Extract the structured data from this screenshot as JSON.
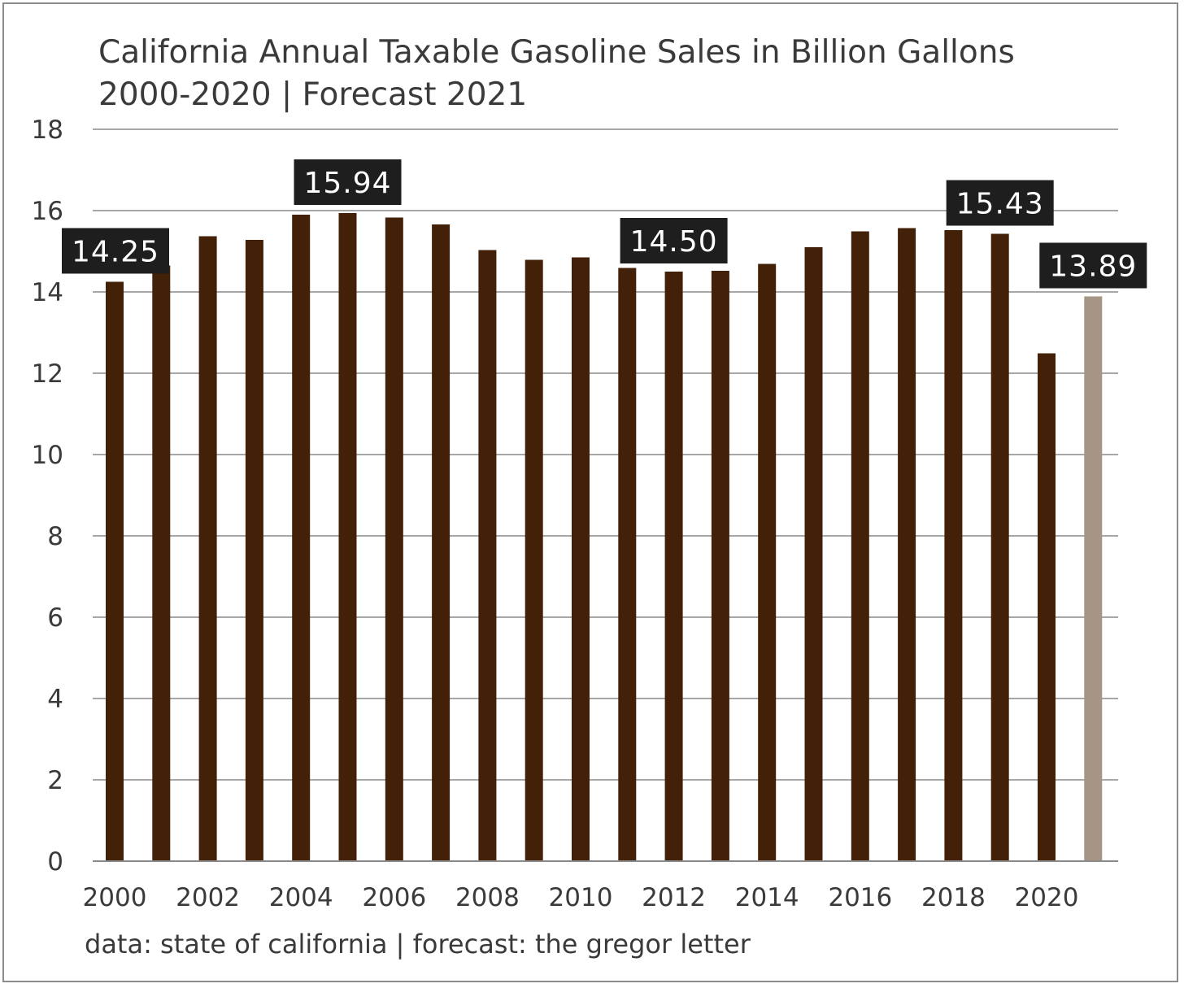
{
  "chart_data": {
    "type": "bar",
    "title": "California Annual Taxable Gasoline Sales in Billion Gallons",
    "subtitle": "2000-2020 | Forecast 2021",
    "source": "data: state of california | forecast: the gregor letter",
    "xlabel": "",
    "ylabel": "",
    "ylim": [
      0,
      18
    ],
    "yticks": [
      "0",
      "2",
      "4",
      "6",
      "8",
      "10",
      "12",
      "14",
      "16",
      "18"
    ],
    "xticks": [
      "2000",
      "2002",
      "2004",
      "2006",
      "2008",
      "2010",
      "2012",
      "2014",
      "2016",
      "2018",
      "2020"
    ],
    "grid": true,
    "legend": "none",
    "categories": [
      "2000",
      "2001",
      "2002",
      "2003",
      "2004",
      "2005",
      "2006",
      "2007",
      "2008",
      "2009",
      "2010",
      "2011",
      "2012",
      "2013",
      "2014",
      "2015",
      "2016",
      "2017",
      "2018",
      "2019",
      "2020",
      "2021"
    ],
    "values": [
      14.25,
      14.65,
      15.37,
      15.28,
      15.9,
      15.94,
      15.83,
      15.66,
      15.03,
      14.79,
      14.85,
      14.59,
      14.5,
      14.52,
      14.69,
      15.1,
      15.49,
      15.57,
      15.52,
      15.43,
      12.49,
      13.89
    ],
    "forecast_categories": [
      "2021"
    ],
    "data_labels": [
      {
        "category": "2000",
        "text": "14.25"
      },
      {
        "category": "2005",
        "text": "15.94"
      },
      {
        "category": "2012",
        "text": "14.50"
      },
      {
        "category": "2019",
        "text": "15.43"
      },
      {
        "category": "2021",
        "text": "13.89"
      }
    ],
    "colors": {
      "actual": "#432108",
      "forecast": "#a69584",
      "label_background": "#1e1e1e",
      "label_text": "#ffffff",
      "gridline": "#8a8a8a"
    }
  }
}
